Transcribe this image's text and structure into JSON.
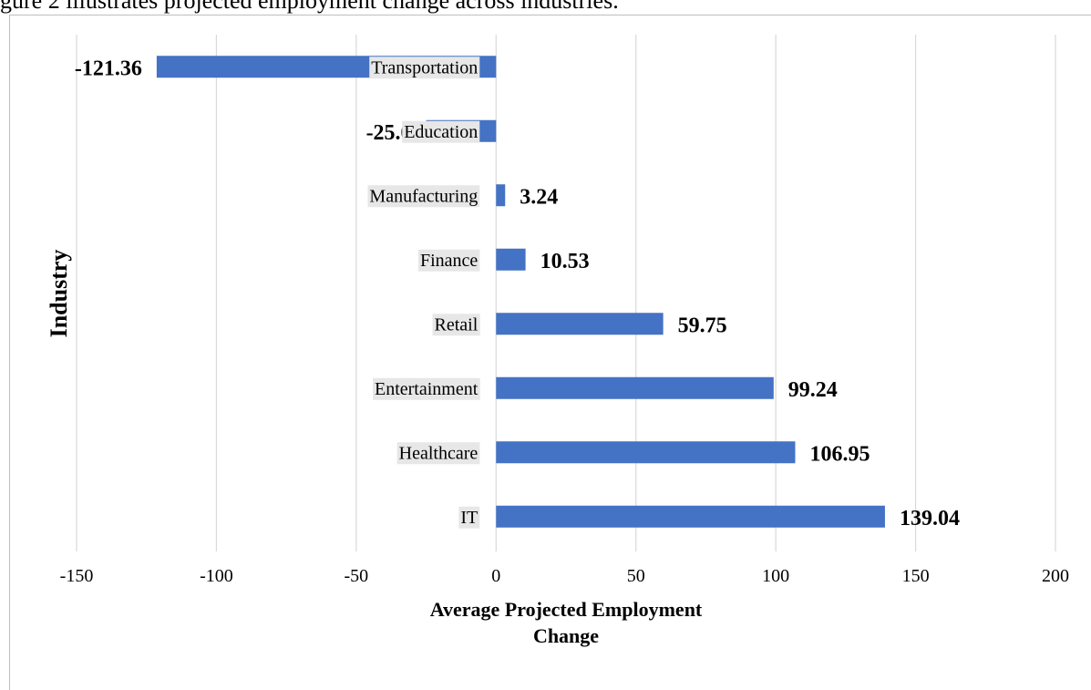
{
  "caption": "gure 2 illustrates projected employment change across industries.",
  "chart_data": {
    "type": "bar",
    "orientation": "horizontal",
    "categories": [
      "Transportation",
      "Education",
      "Manufacturing",
      "Finance",
      "Retail",
      "Entertainment",
      "Healthcare",
      "IT"
    ],
    "values": [
      -121.36,
      -25.0,
      3.24,
      10.53,
      59.75,
      99.24,
      106.95,
      139.04
    ],
    "data_labels": [
      "-121.36",
      "-25.0",
      "3.24",
      "10.53",
      "59.75",
      "99.24",
      "106.95",
      "139.04"
    ],
    "xlabel_lines": [
      "Average Projected Employment",
      "Change"
    ],
    "ylabel": "Industry",
    "xlim": [
      -150,
      200
    ],
    "xticks": [
      -150,
      -100,
      -50,
      0,
      50,
      100,
      150,
      200
    ],
    "grid": true,
    "legend": "none",
    "bar_color": "#4472C4",
    "grid_color": "#d9d9d9",
    "category_label_bg": "#e7e7e7"
  }
}
